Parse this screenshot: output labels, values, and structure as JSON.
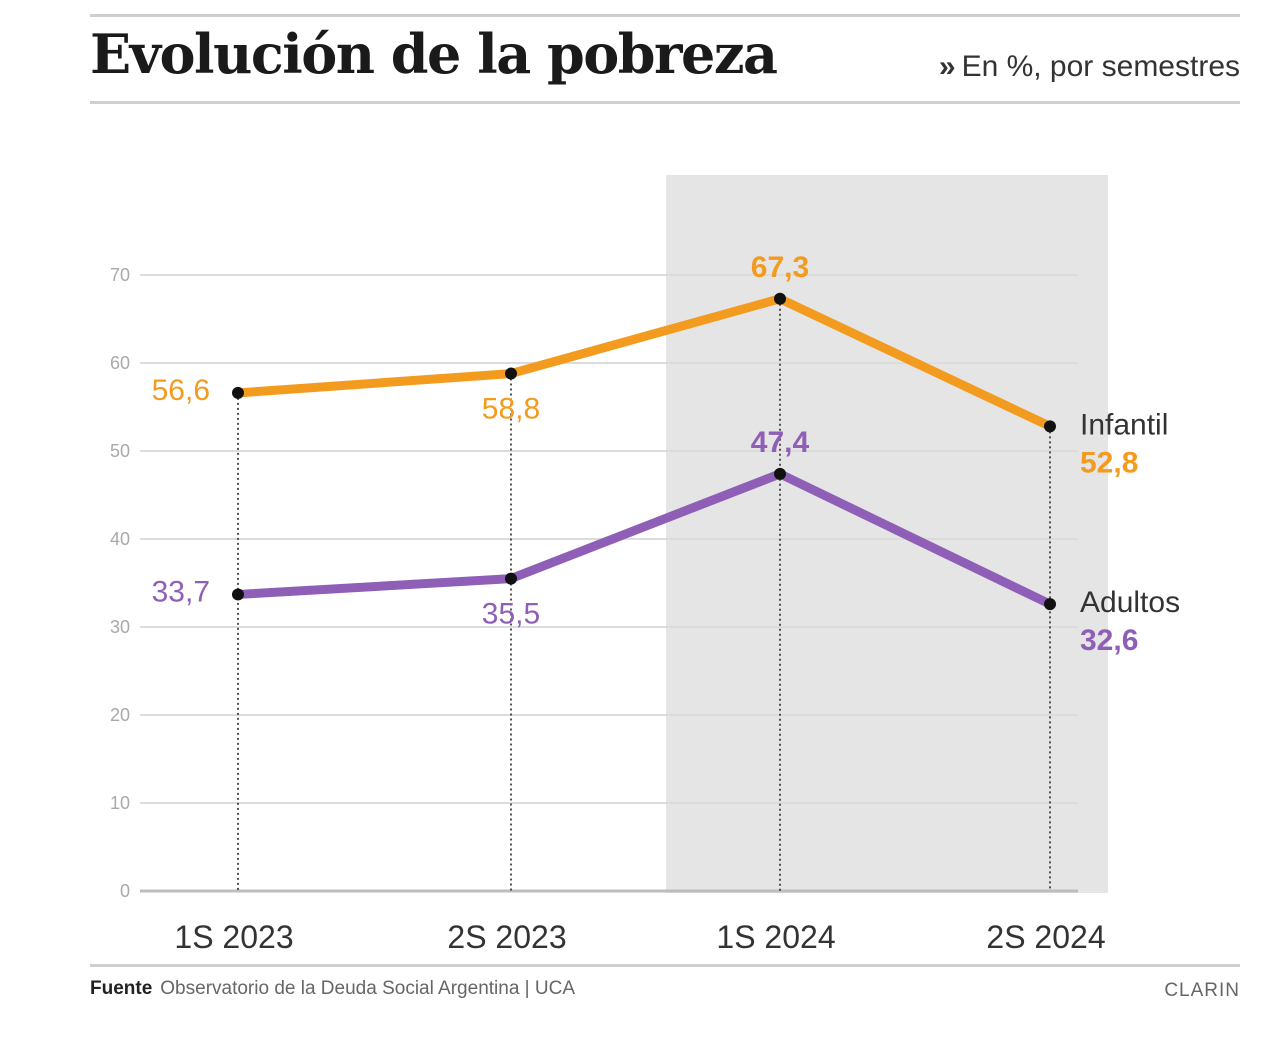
{
  "header": {
    "title": "Evolución de la pobreza",
    "subtitle_marker": "»",
    "subtitle": "En %, por semestres"
  },
  "chart_data": {
    "type": "line",
    "title": "Evolución de la pobreza",
    "subtitle": "En %, por semestres",
    "xlabel": "",
    "ylabel": "",
    "ylim": [
      0,
      70
    ],
    "yticks": [
      "0",
      "10",
      "20",
      "30",
      "40",
      "50",
      "60",
      "70"
    ],
    "categories": [
      "1S 2023",
      "2S 2023",
      "1S 2024",
      "2S 2024"
    ],
    "highlighted_categories": [
      "1S 2024",
      "2S 2024"
    ],
    "grid": true,
    "series": [
      {
        "name": "Infantil",
        "color": "#f39b1e",
        "values": [
          56.6,
          58.8,
          67.3,
          52.8
        ],
        "labels": [
          "56,6",
          "58,8",
          "67,3",
          "52,8"
        ]
      },
      {
        "name": "Adultos",
        "color": "#8f5fb8",
        "values": [
          33.7,
          35.5,
          47.4,
          32.6
        ],
        "labels": [
          "33,7",
          "35,5",
          "47,4",
          "32,6"
        ]
      }
    ]
  },
  "footer": {
    "source_label": "Fuente",
    "source_text": "Observatorio de la Deuda Social Argentina | UCA",
    "credit": "CLARIN"
  }
}
